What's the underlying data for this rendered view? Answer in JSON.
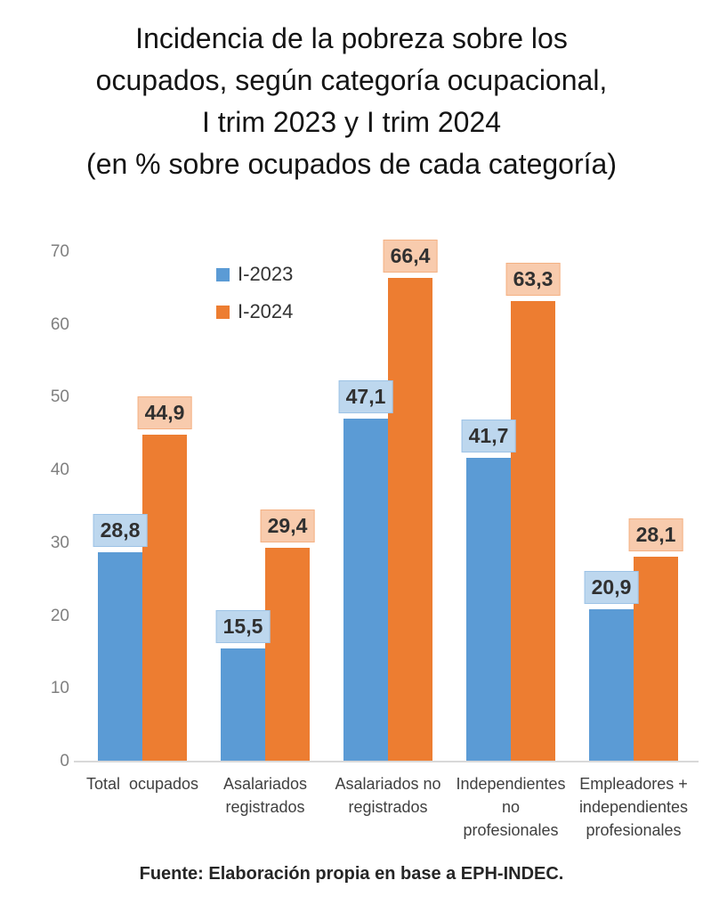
{
  "title": "Incidencia de la pobreza sobre los\nocupados, según categoría ocupacional,\nI trim 2023 y I trim 2024\n(en % sobre ocupados de cada categoría)",
  "source": "Fuente: Elaboración propia en base a EPH-INDEC.",
  "colors": {
    "bar_2023": "#5B9BD5",
    "bar_2024": "#ED7D31",
    "label_bg_2023": "#BDD7EE",
    "label_border_2023": "#9DC3E6",
    "label_bg_2024": "#F8CBAD",
    "label_border_2024": "#F4B183",
    "axis_tick_text": "#7f7f7f",
    "category_text": "#404040",
    "axis_line": "#d9d9d9"
  },
  "chart_data": {
    "type": "bar",
    "title": "Incidencia de la pobreza sobre los ocupados, según categoría ocupacional, I trim 2023 y I trim 2024 (en % sobre ocupados de cada categoría)",
    "categories": [
      "Total  ocupados",
      "Asalariados registrados",
      "Asalariados no registrados",
      "Independientes no profesionales",
      "Empleadores + independientes profesionales"
    ],
    "categories_lines": [
      [
        "Total  ocupados"
      ],
      [
        "Asalariados",
        "registrados"
      ],
      [
        "Asalariados no",
        "registrados"
      ],
      [
        "Independientes",
        "no",
        "profesionales"
      ],
      [
        "Empleadores +",
        "independientes",
        "profesionales"
      ]
    ],
    "series": [
      {
        "name": "I-2023",
        "color": "#5B9BD5",
        "label_bg": "#BDD7EE",
        "label_border": "#9DC3E6",
        "values": [
          28.8,
          15.5,
          47.1,
          41.7,
          20.9
        ],
        "labels": [
          "28,8",
          "15,5",
          "47,1",
          "41,7",
          "20,9"
        ]
      },
      {
        "name": "I-2024",
        "color": "#ED7D31",
        "label_bg": "#F8CBAD",
        "label_border": "#F4B183",
        "values": [
          44.9,
          29.4,
          66.4,
          63.3,
          28.1
        ],
        "labels": [
          "44,9",
          "29,4",
          "66,4",
          "63,3",
          "28,1"
        ]
      }
    ],
    "xlabel": "",
    "ylabel": "",
    "ylim": [
      0,
      70
    ],
    "yticks": [
      0,
      10,
      20,
      30,
      40,
      50,
      60,
      70
    ],
    "grid": false,
    "legend_position": "inside-top-left"
  }
}
